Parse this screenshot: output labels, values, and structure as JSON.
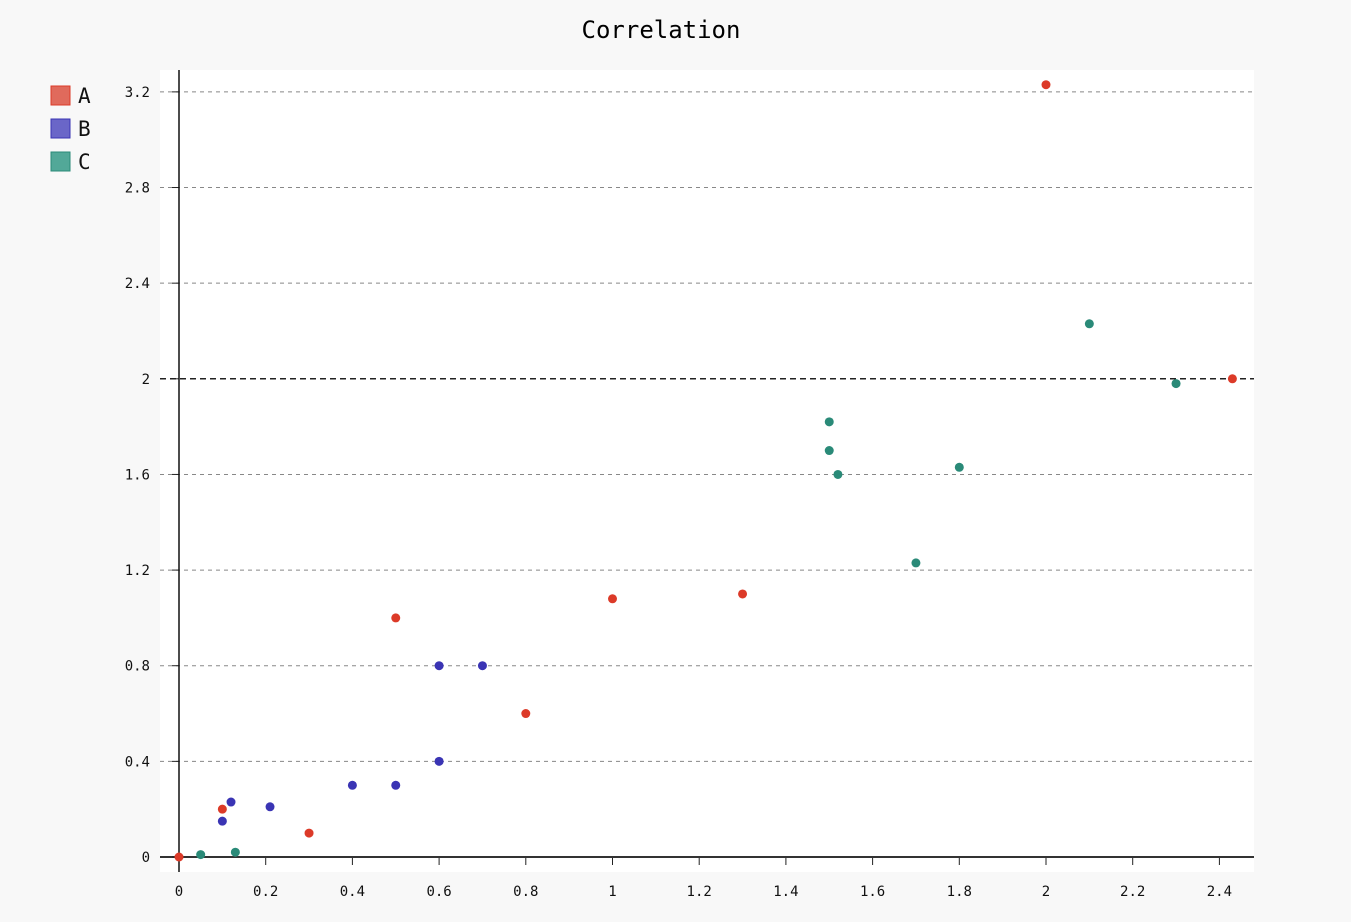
{
  "chart_data": {
    "type": "scatter",
    "title": "Correlation",
    "xlabel": "",
    "ylabel": "",
    "xlim": [
      -0.05,
      2.48
    ],
    "ylim": [
      -0.04,
      3.27
    ],
    "x_ticks": [
      0,
      0.2,
      0.4,
      0.6,
      0.8,
      1,
      1.2,
      1.4,
      1.6,
      1.8,
      2,
      2.2,
      2.4
    ],
    "x_tick_labels": [
      "0",
      "0.2",
      "0.4",
      "0.6",
      "0.8",
      "1",
      "1.2",
      "1.4",
      "1.6",
      "1.8",
      "2",
      "2.2",
      "2.4"
    ],
    "y_ticks": [
      0,
      0.4,
      0.8,
      1.2,
      1.6,
      2,
      2.4,
      2.8,
      3.2
    ],
    "y_tick_labels": [
      "0",
      "0.4",
      "0.8",
      "1.2",
      "1.6",
      "2",
      "2.4",
      "2.8",
      "3.2"
    ],
    "major_y": 2,
    "grid": "horizontal dashed",
    "legend_position": "top-left",
    "series": [
      {
        "name": "A",
        "color": "#dc3a28",
        "legend_color": "#e06a5c",
        "points": [
          [
            0,
            0
          ],
          [
            0.1,
            0.2
          ],
          [
            0.3,
            0.1
          ],
          [
            0.5,
            1.0
          ],
          [
            0.8,
            0.6
          ],
          [
            1,
            1.08
          ],
          [
            1.3,
            1.1
          ],
          [
            2,
            3.23
          ],
          [
            2.43,
            2.0
          ]
        ]
      },
      {
        "name": "B",
        "color": "#3a34b4",
        "legend_color": "#6a66c8",
        "points": [
          [
            0.1,
            0.15
          ],
          [
            0.12,
            0.23
          ],
          [
            0.21,
            0.21
          ],
          [
            0.4,
            0.3
          ],
          [
            0.5,
            0.3
          ],
          [
            0.6,
            0.8
          ],
          [
            0.7,
            0.8
          ],
          [
            0.6,
            0.4
          ]
        ]
      },
      {
        "name": "C",
        "color": "#2a8a78",
        "legend_color": "#52a898",
        "points": [
          [
            0.05,
            0.01
          ],
          [
            0.13,
            0.02
          ],
          [
            1.5,
            1.82
          ],
          [
            1.5,
            1.7
          ],
          [
            1.52,
            1.6
          ],
          [
            1.7,
            1.23
          ],
          [
            1.8,
            1.63
          ],
          [
            2.1,
            2.23
          ],
          [
            2.3,
            1.98
          ]
        ]
      }
    ]
  }
}
